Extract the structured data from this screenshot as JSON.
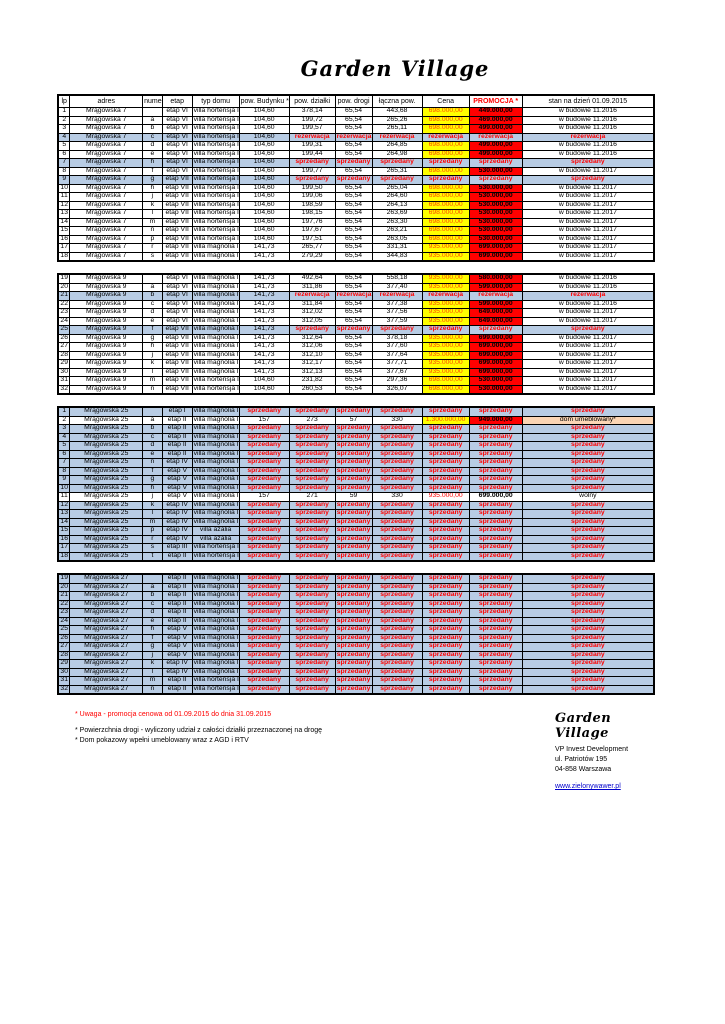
{
  "page": {
    "title": "Garden Village"
  },
  "colors": {
    "row_blue": "#b8cce4",
    "price_yellow": "#ffff00",
    "promo_red": "#ff0000",
    "status_text_red": "#ff0000",
    "furnished_peach": "#fbd5b4",
    "link_blue": "#0000cc"
  },
  "table": {
    "columns": [
      "lp",
      "adres",
      "numer",
      "etap",
      "typ domu",
      "pow. Budynku *",
      "pow. działki",
      "pow. drogi",
      "łączna pow.",
      "Cena",
      "PROMOCJA *",
      "stan na dzień 01.09.2015"
    ],
    "col_widths_pct": [
      2.0,
      12.2,
      3.3,
      5.0,
      7.9,
      8.4,
      7.7,
      6.2,
      8.4,
      7.9,
      8.9,
      22.1
    ],
    "blocks": [
      [
        [
          "1",
          "Mrągowska 7",
          "",
          "etap VI",
          "villa hortensja II",
          "104,60",
          "378,14",
          "65,54",
          "443,68",
          "698.000,00",
          "449.000,00",
          "w budowie 11.2016"
        ],
        [
          "2",
          "Mrągowska 7",
          "a",
          "etap VI",
          "villa hortensja II",
          "104,60",
          "199,72",
          "65,54",
          "265,26",
          "698.000,00",
          "469.000,00",
          "w budowie 11.2016"
        ],
        [
          "3",
          "Mrągowska 7",
          "b",
          "etap VI",
          "villa hortensja II",
          "104,60",
          "199,57",
          "65,54",
          "265,11",
          "698.000,00",
          "499.000,00",
          "w budowie 11.2016"
        ],
        [
          "4",
          "Mrągowska 7",
          "c",
          "etap VI",
          "villa hortensja II",
          "104,60",
          "rezerwacja",
          "rezerwacja",
          "rezerwacja",
          "rezerwacja",
          "rezerwacja",
          "rezerwacja"
        ],
        [
          "5",
          "Mrągowska 7",
          "d",
          "etap VI",
          "villa hortensja II",
          "104,60",
          "199,31",
          "65,54",
          "264,85",
          "698.000,00",
          "499.000,00",
          "w budowie 11.2016"
        ],
        [
          "6",
          "Mrągowska 7",
          "e",
          "etap VI",
          "villa hortensja II",
          "104,60",
          "199,44",
          "65,54",
          "264,98",
          "698.000,00",
          "499.000,00",
          "w budowie 11.2016"
        ],
        [
          "7",
          "Mrągowska 7",
          "h",
          "etap VI",
          "villa hortensja II",
          "104,60",
          "sprzedany",
          "sprzedany",
          "sprzedany",
          "sprzedany",
          "sprzedany",
          "sprzedany"
        ],
        [
          "8",
          "Mrągowska 7",
          "f",
          "etap VI",
          "villa hortensja II",
          "104,60",
          "199,77",
          "65,54",
          "265,31",
          "698.000,00",
          "530.000,00",
          "w budowie 11.2017"
        ],
        [
          "9",
          "Mrągowska 7",
          "g",
          "etap VII",
          "villa hortensja II",
          "104,60",
          "sprzedany",
          "sprzedany",
          "sprzedany",
          "sprzedany",
          "sprzedany",
          "sprzedany"
        ],
        [
          "10",
          "Mrągowska 7",
          "h",
          "etap VII",
          "villa hortensja II",
          "104,60",
          "199,50",
          "65,54",
          "265,04",
          "698.000,00",
          "530.000,00",
          "w budowie 11.2017"
        ],
        [
          "11",
          "Mrągowska 7",
          "j",
          "etap VII",
          "villa hortensja II",
          "104,60",
          "199,06",
          "65,54",
          "264,60",
          "698.000,00",
          "530.000,00",
          "w budowie 11.2017"
        ],
        [
          "12",
          "Mrągowska 7",
          "k",
          "etap VII",
          "villa hortensja II",
          "104,60",
          "198,59",
          "65,54",
          "264,13",
          "698.000,00",
          "530.000,00",
          "w budowie 11.2017"
        ],
        [
          "13",
          "Mrągowska 7",
          "l",
          "etap VII",
          "villa hortensja II",
          "104,60",
          "198,15",
          "65,54",
          "263,69",
          "698.000,00",
          "530.000,00",
          "w budowie 11.2017"
        ],
        [
          "14",
          "Mrągowska 7",
          "m",
          "etap VII",
          "villa hortensja II",
          "104,60",
          "197,76",
          "65,54",
          "263,30",
          "698.000,00",
          "530.000,00",
          "w budowie 11.2017"
        ],
        [
          "15",
          "Mrągowska 7",
          "n",
          "etap VII",
          "villa hortensja II",
          "104,60",
          "197,67",
          "65,54",
          "263,21",
          "698.000,00",
          "530.000,00",
          "w budowie 11.2017"
        ],
        [
          "16",
          "Mrągowska 7",
          "p",
          "etap VII",
          "villa hortensja II",
          "104,60",
          "197,51",
          "65,54",
          "263,05",
          "698.000,00",
          "530.000,00",
          "w budowie 11.2017"
        ],
        [
          "17",
          "Mrągowska 7",
          "r",
          "etap VII",
          "villa magnolia II",
          "141,73",
          "265,77",
          "65,54",
          "331,31",
          "935.000,00",
          "699.000,00",
          "w budowie 11.2017"
        ],
        [
          "18",
          "Mrągowska 7",
          "s",
          "etap VII",
          "villa magnolia II",
          "141,73",
          "279,29",
          "65,54",
          "344,83",
          "935.000,00",
          "699.000,00",
          "w budowie 11.2017"
        ]
      ],
      [
        [
          "19",
          "Mrągowska 9",
          "",
          "etap VI",
          "villa magnolia II",
          "141,73",
          "492,64",
          "65,54",
          "558,18",
          "935.000,00",
          "580.000,00",
          "w budowie 11.2016"
        ],
        [
          "20",
          "Mrągowska 9",
          "a",
          "etap VI",
          "villa magnolia II",
          "141,73",
          "311,86",
          "65,54",
          "377,40",
          "935.000,00",
          "599.000,00",
          "w budowie 11.2016"
        ],
        [
          "21",
          "Mrągowska 9",
          "b",
          "etap VI",
          "villa magnolia II",
          "141,73",
          "rezerwacja",
          "rezerwacja",
          "rezerwacja",
          "rezerwacja",
          "rezerwacja",
          "rezerwacja"
        ],
        [
          "22",
          "Mrągowska 9",
          "c",
          "etap VI",
          "villa magnolia II",
          "141,73",
          "311,84",
          "65,54",
          "377,38",
          "935.000,00",
          "599.000,00",
          "w budowie 11.2016"
        ],
        [
          "23",
          "Mrągowska 9",
          "d",
          "etap VI",
          "villa magnolia II",
          "141,73",
          "312,02",
          "65,54",
          "377,56",
          "935.000,00",
          "649.000,00",
          "w budowie 11.2017"
        ],
        [
          "24",
          "Mrągowska 9",
          "e",
          "etap VI",
          "villa magnolia II",
          "141,73",
          "312,05",
          "65,54",
          "377,59",
          "935.000,00",
          "649.000,00",
          "w budowie 11.2017"
        ],
        [
          "25",
          "Mrągowska 9",
          "f",
          "etap VII",
          "villa magnolia II",
          "141,73",
          "sprzedany",
          "sprzedany",
          "sprzedany",
          "sprzedany",
          "sprzedany",
          "sprzedany"
        ],
        [
          "26",
          "Mrągowska 9",
          "g",
          "etap VII",
          "villa magnolia II",
          "141,73",
          "312,64",
          "65,54",
          "378,18",
          "935.000,00",
          "699.000,00",
          "w budowie 11.2017"
        ],
        [
          "27",
          "Mrągowska 9",
          "h",
          "etap VII",
          "villa magnolia II",
          "141,73",
          "312,06",
          "65,54",
          "377,60",
          "935.000,00",
          "699.000,00",
          "w budowie 11.2017"
        ],
        [
          "28",
          "Mrągowska 9",
          "j",
          "etap VII",
          "villa magnolia II",
          "141,73",
          "312,10",
          "65,54",
          "377,64",
          "935.000,00",
          "699.000,00",
          "w budowie 11.2017"
        ],
        [
          "29",
          "Mrągowska 9",
          "k",
          "etap VII",
          "villa magnolia II",
          "141,73",
          "312,17",
          "65,54",
          "377,71",
          "935.000,00",
          "699.000,00",
          "w budowie 11.2017"
        ],
        [
          "30",
          "Mrągowska 9",
          "l",
          "etap VII",
          "villa magnolia II",
          "141,73",
          "312,13",
          "65,54",
          "377,67",
          "935.000,00",
          "699.000,00",
          "w budowie 11.2017"
        ],
        [
          "31",
          "Mrągowska 9",
          "m",
          "etap VII",
          "villa hortensja II",
          "104,60",
          "231,82",
          "65,54",
          "297,36",
          "698.000,00",
          "530.000,00",
          "w budowie 11.2017"
        ],
        [
          "32",
          "Mrągowska 9",
          "n",
          "etap VII",
          "villa hortensja II",
          "104,60",
          "260,53",
          "65,54",
          "326,07",
          "698.000,00",
          "530.000,00",
          "w budowie 11.2017"
        ]
      ],
      [
        [
          "1",
          "Mrągowska 25",
          "",
          "etap I",
          "villa magnolia I",
          "sprzedany",
          "sprzedany",
          "sprzedany",
          "sprzedany",
          "sprzedany",
          "sprzedany",
          "sprzedany"
        ],
        [
          "2",
          "Mrągowska 25",
          "a",
          "etap II",
          "villa magnolia I",
          "157",
          "273",
          "57",
          "330",
          "1.300.000,00",
          "949.000,00",
          "dom umeblowany*"
        ],
        [
          "3",
          "Mrągowska 25",
          "b",
          "etap II",
          "villa magnolia I",
          "sprzedany",
          "sprzedany",
          "sprzedany",
          "sprzedany",
          "sprzedany",
          "sprzedany",
          "sprzedany"
        ],
        [
          "4",
          "Mrągowska 25",
          "c",
          "etap II",
          "villa magnolia I",
          "sprzedany",
          "sprzedany",
          "sprzedany",
          "sprzedany",
          "sprzedany",
          "sprzedany",
          "sprzedany"
        ],
        [
          "5",
          "Mrągowska 25",
          "d",
          "etap II",
          "villa magnolia I",
          "sprzedany",
          "sprzedany",
          "sprzedany",
          "sprzedany",
          "sprzedany",
          "sprzedany",
          "sprzedany"
        ],
        [
          "6",
          "Mrągowska 25",
          "e",
          "etap II",
          "villa magnolia I",
          "sprzedany",
          "sprzedany",
          "sprzedany",
          "sprzedany",
          "sprzedany",
          "sprzedany",
          "sprzedany"
        ],
        [
          "7",
          "Mrągowska 25",
          "n",
          "etap IV",
          "villa magnolia I",
          "sprzedany",
          "sprzedany",
          "sprzedany",
          "sprzedany",
          "sprzedany",
          "sprzedany",
          "sprzedany"
        ],
        [
          "8",
          "Mrągowska 25",
          "f",
          "etap V",
          "villa magnolia I",
          "sprzedany",
          "sprzedany",
          "sprzedany",
          "sprzedany",
          "sprzedany",
          "sprzedany",
          "sprzedany"
        ],
        [
          "9",
          "Mrągowska 25",
          "g",
          "etap V",
          "villa magnolia I",
          "sprzedany",
          "sprzedany",
          "sprzedany",
          "sprzedany",
          "sprzedany",
          "sprzedany",
          "sprzedany"
        ],
        [
          "10",
          "Mrągowska 25",
          "h",
          "etap V",
          "villa magnolia I",
          "sprzedany",
          "sprzedany",
          "sprzedany",
          "sprzedany",
          "sprzedany",
          "sprzedany",
          "sprzedany"
        ],
        [
          "11",
          "Mrągowska 25",
          "j",
          "etap V",
          "villa magnolia I",
          "157",
          "271",
          "59",
          "330",
          "935.000,00",
          "699.000,00",
          "wolny"
        ],
        [
          "12",
          "Mrągowska 25",
          "k",
          "etap IV",
          "villa magnolia I",
          "sprzedany",
          "sprzedany",
          "sprzedany",
          "sprzedany",
          "sprzedany",
          "sprzedany",
          "sprzedany"
        ],
        [
          "13",
          "Mrągowska 25",
          "l",
          "etap IV",
          "villa magnolia I",
          "sprzedany",
          "sprzedany",
          "sprzedany",
          "sprzedany",
          "sprzedany",
          "sprzedany",
          "sprzedany"
        ],
        [
          "14",
          "Mrągowska 25",
          "m",
          "etap IV",
          "villa magnolia I",
          "sprzedany",
          "sprzedany",
          "sprzedany",
          "sprzedany",
          "sprzedany",
          "sprzedany",
          "sprzedany"
        ],
        [
          "15",
          "Mrągowska 25",
          "p",
          "etap IV",
          "villa azalia",
          "sprzedany",
          "sprzedany",
          "sprzedany",
          "sprzedany",
          "sprzedany",
          "sprzedany",
          "sprzedany"
        ],
        [
          "16",
          "Mrągowska 25",
          "r",
          "etap IV",
          "villa azalia",
          "sprzedany",
          "sprzedany",
          "sprzedany",
          "sprzedany",
          "sprzedany",
          "sprzedany",
          "sprzedany"
        ],
        [
          "17",
          "Mrągowska 25",
          "s",
          "etap III",
          "villa hortensja I",
          "sprzedany",
          "sprzedany",
          "sprzedany",
          "sprzedany",
          "sprzedany",
          "sprzedany",
          "sprzedany"
        ],
        [
          "18",
          "Mrągowska 25",
          "t",
          "etap II",
          "villa hortensja I",
          "sprzedany",
          "sprzedany",
          "sprzedany",
          "sprzedany",
          "sprzedany",
          "sprzedany",
          "sprzedany"
        ]
      ],
      [
        [
          "19",
          "Mrągowska 27",
          "",
          "etap II",
          "villa magnolia I",
          "sprzedany",
          "sprzedany",
          "sprzedany",
          "sprzedany",
          "sprzedany",
          "sprzedany",
          "sprzedany"
        ],
        [
          "20",
          "Mrągowska 27",
          "a",
          "etap II",
          "villa magnolia I",
          "sprzedany",
          "sprzedany",
          "sprzedany",
          "sprzedany",
          "sprzedany",
          "sprzedany",
          "sprzedany"
        ],
        [
          "21",
          "Mrągowska 27",
          "b",
          "etap II",
          "villa magnolia I",
          "sprzedany",
          "sprzedany",
          "sprzedany",
          "sprzedany",
          "sprzedany",
          "sprzedany",
          "sprzedany"
        ],
        [
          "22",
          "Mrągowska 27",
          "c",
          "etap II",
          "villa magnolia I",
          "sprzedany",
          "sprzedany",
          "sprzedany",
          "sprzedany",
          "sprzedany",
          "sprzedany",
          "sprzedany"
        ],
        [
          "23",
          "Mrągowska 27",
          "d",
          "etap II",
          "villa magnolia I",
          "sprzedany",
          "sprzedany",
          "sprzedany",
          "sprzedany",
          "sprzedany",
          "sprzedany",
          "sprzedany"
        ],
        [
          "24",
          "Mrągowska 27",
          "e",
          "etap II",
          "villa magnolia I",
          "sprzedany",
          "sprzedany",
          "sprzedany",
          "sprzedany",
          "sprzedany",
          "sprzedany",
          "sprzedany"
        ],
        [
          "25",
          "Mrągowska 27",
          "h",
          "etap V",
          "villa magnolia I",
          "sprzedany",
          "sprzedany",
          "sprzedany",
          "sprzedany",
          "sprzedany",
          "sprzedany",
          "sprzedany"
        ],
        [
          "26",
          "Mrągowska 27",
          "f",
          "etap V",
          "villa magnolia I",
          "sprzedany",
          "sprzedany",
          "sprzedany",
          "sprzedany",
          "sprzedany",
          "sprzedany",
          "sprzedany"
        ],
        [
          "27",
          "Mrągowska 27",
          "g",
          "etap V",
          "villa magnolia I",
          "sprzedany",
          "sprzedany",
          "sprzedany",
          "sprzedany",
          "sprzedany",
          "sprzedany",
          "sprzedany"
        ],
        [
          "28",
          "Mrągowska 27",
          "j",
          "etap V",
          "villa magnolia I",
          "sprzedany",
          "sprzedany",
          "sprzedany",
          "sprzedany",
          "sprzedany",
          "sprzedany",
          "sprzedany"
        ],
        [
          "29",
          "Mrągowska 27",
          "k",
          "etap IV",
          "villa magnolia I",
          "sprzedany",
          "sprzedany",
          "sprzedany",
          "sprzedany",
          "sprzedany",
          "sprzedany",
          "sprzedany"
        ],
        [
          "30",
          "Mrągowska 27",
          "l",
          "etap IV",
          "villa magnolia I",
          "sprzedany",
          "sprzedany",
          "sprzedany",
          "sprzedany",
          "sprzedany",
          "sprzedany",
          "sprzedany"
        ],
        [
          "31",
          "Mrągowska 27",
          "m",
          "etap II",
          "villa hortensja I",
          "sprzedany",
          "sprzedany",
          "sprzedany",
          "sprzedany",
          "sprzedany",
          "sprzedany",
          "sprzedany"
        ],
        [
          "32",
          "Mrągowska 27",
          "n",
          "etap II",
          "villa hortensja I",
          "sprzedany",
          "sprzedany",
          "sprzedany",
          "sprzedany",
          "sprzedany",
          "sprzedany",
          "sprzedany"
        ]
      ]
    ]
  },
  "footnotes": {
    "promo": "* Uwaga - promocja cenowa od 01.09.2015 do dnia 31.09.2015",
    "road": "* Powierzchnia drogi - wyliczony udział z całości działki przeznaczonej na drogę",
    "show_home": "* Dom pokazowy wpełni umeblowany wraz z AGD i RTV"
  },
  "company": {
    "logo": "Garden Village",
    "name": "VP Invest Development",
    "street": "ul. Patriotów 195",
    "city": "04-858 Warszawa",
    "website": "www.zielonywawer.pl"
  }
}
